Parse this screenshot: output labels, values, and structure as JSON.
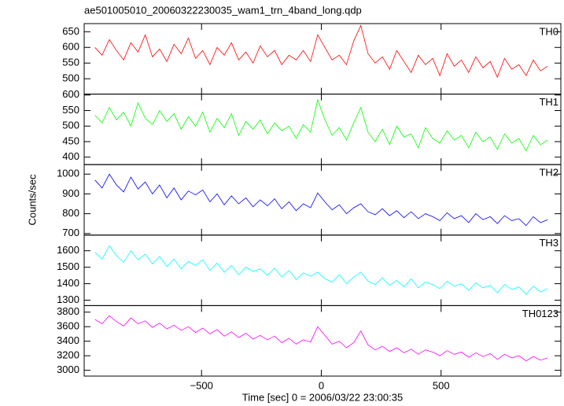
{
  "chart_data": {
    "type": "line",
    "title": "ae501005010_20060322230035_wam1_trn_4band_long.qdp",
    "xlabel": "Time [sec] 0 = 2006/03/22 23:00:35",
    "ylabel": "Counts/sec",
    "xlim": [
      -990,
      1000
    ],
    "xticks": [
      {
        "value": -500,
        "label": "−500"
      },
      0,
      500
    ],
    "x": [
      -945,
      -915,
      -885,
      -855,
      -825,
      -795,
      -765,
      -735,
      -705,
      -675,
      -645,
      -615,
      -585,
      -555,
      -525,
      -495,
      -465,
      -435,
      -405,
      -375,
      -345,
      -315,
      -285,
      -255,
      -225,
      -195,
      -165,
      -135,
      -105,
      -75,
      -45,
      -15,
      15,
      45,
      75,
      105,
      135,
      165,
      195,
      225,
      255,
      285,
      315,
      345,
      375,
      405,
      435,
      465,
      495,
      525,
      555,
      585,
      615,
      645,
      675,
      705,
      735,
      765,
      795,
      825,
      855,
      885,
      915,
      945
    ],
    "series": [
      {
        "name": "TH0",
        "color": "#ff0000",
        "ylim": [
          451,
          676
        ],
        "yticks": [
          500,
          550,
          600,
          650
        ],
        "values": [
          600,
          575,
          625,
          590,
          560,
          615,
          585,
          640,
          570,
          595,
          555,
          610,
          580,
          630,
          565,
          590,
          545,
          600,
          575,
          615,
          560,
          585,
          550,
          605,
          570,
          590,
          545,
          575,
          560,
          590,
          555,
          640,
          600,
          560,
          575,
          545,
          620,
          670,
          580,
          550,
          570,
          530,
          590,
          555,
          520,
          575,
          545,
          565,
          510,
          580,
          540,
          560,
          520,
          570,
          535,
          555,
          505,
          565,
          530,
          545,
          510,
          560,
          525,
          540
        ]
      },
      {
        "name": "TH1",
        "color": "#00ff00",
        "ylim": [
          376,
          603
        ],
        "yticks": [
          400,
          450,
          500,
          550,
          600
        ],
        "values": [
          535,
          510,
          560,
          520,
          545,
          500,
          575,
          525,
          505,
          550,
          515,
          540,
          490,
          530,
          500,
          545,
          480,
          525,
          495,
          540,
          470,
          515,
          490,
          520,
          475,
          510,
          485,
          500,
          460,
          505,
          480,
          585,
          520,
          470,
          495,
          455,
          510,
          560,
          480,
          450,
          490,
          440,
          500,
          465,
          475,
          430,
          495,
          460,
          445,
          485,
          455,
          470,
          430,
          480,
          450,
          465,
          425,
          475,
          445,
          460,
          420,
          470,
          440,
          455
        ]
      },
      {
        "name": "TH2",
        "color": "#0000ff",
        "ylim": [
          692,
          1048
        ],
        "yticks": [
          700,
          800,
          900,
          1000
        ],
        "values": [
          970,
          930,
          1000,
          945,
          910,
          985,
          925,
          960,
          900,
          945,
          880,
          930,
          870,
          915,
          895,
          920,
          860,
          900,
          845,
          890,
          850,
          880,
          835,
          870,
          840,
          875,
          825,
          860,
          815,
          850,
          830,
          905,
          860,
          820,
          845,
          800,
          830,
          850,
          810,
          795,
          825,
          790,
          815,
          780,
          810,
          775,
          800,
          785,
          765,
          805,
          775,
          790,
          755,
          800,
          770,
          785,
          750,
          790,
          765,
          775,
          740,
          785,
          755,
          770
        ]
      },
      {
        "name": "TH3",
        "color": "#00ffff",
        "ylim": [
          1267,
          1695
        ],
        "yticks": [
          1300,
          1400,
          1500,
          1600
        ],
        "values": [
          1590,
          1550,
          1630,
          1570,
          1530,
          1600,
          1545,
          1580,
          1520,
          1565,
          1505,
          1550,
          1490,
          1535,
          1510,
          1545,
          1480,
          1525,
          1470,
          1510,
          1455,
          1500,
          1475,
          1490,
          1450,
          1495,
          1440,
          1480,
          1425,
          1465,
          1445,
          1470,
          1430,
          1410,
          1455,
          1400,
          1440,
          1470,
          1415,
          1395,
          1435,
          1390,
          1420,
          1380,
          1430,
          1375,
          1410,
          1395,
          1370,
          1415,
          1385,
          1400,
          1360,
          1405,
          1375,
          1390,
          1345,
          1395,
          1365,
          1380,
          1335,
          1385,
          1350,
          1370
        ]
      },
      {
        "name": "TH0123",
        "color": "#ff00ff",
        "ylim": [
          2920,
          3890
        ],
        "yticks": [
          3000,
          3200,
          3400,
          3600,
          3800
        ],
        "values": [
          3700,
          3640,
          3750,
          3670,
          3610,
          3720,
          3640,
          3680,
          3590,
          3650,
          3570,
          3620,
          3550,
          3600,
          3520,
          3580,
          3500,
          3560,
          3470,
          3530,
          3450,
          3510,
          3430,
          3480,
          3420,
          3470,
          3380,
          3440,
          3360,
          3420,
          3390,
          3600,
          3480,
          3360,
          3400,
          3310,
          3380,
          3540,
          3350,
          3280,
          3330,
          3260,
          3310,
          3240,
          3290,
          3220,
          3280,
          3250,
          3200,
          3270,
          3220,
          3250,
          3180,
          3240,
          3190,
          3230,
          3150,
          3220,
          3170,
          3200,
          3130,
          3190,
          3140,
          3170
        ]
      }
    ]
  }
}
